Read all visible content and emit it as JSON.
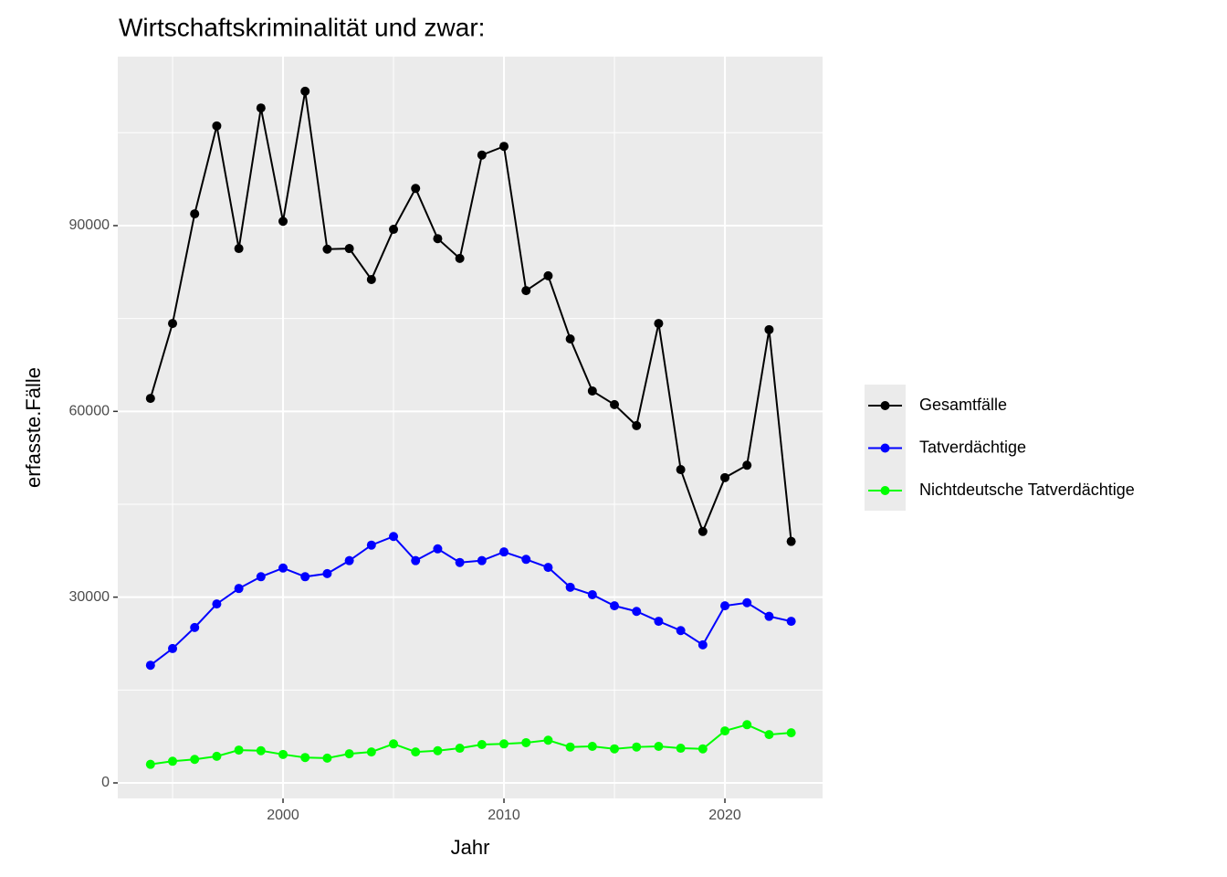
{
  "chart_data": {
    "type": "line",
    "title": "Wirtschaftskriminalität und zwar:",
    "x_label": "Jahr",
    "y_label": "erfasste.Fälle",
    "x": [
      1994,
      1995,
      1996,
      1997,
      1998,
      1999,
      2000,
      2001,
      2002,
      2003,
      2004,
      2005,
      2006,
      2007,
      2008,
      2009,
      2010,
      2011,
      2012,
      2013,
      2014,
      2015,
      2016,
      2017,
      2018,
      2019,
      2020,
      2021,
      2022,
      2023
    ],
    "series": [
      {
        "name": "Gesamtfälle",
        "color": "#000000",
        "values": [
          62100,
          74200,
          91900,
          106100,
          86300,
          109000,
          90700,
          111700,
          86200,
          86300,
          81300,
          89400,
          96000,
          87900,
          84700,
          101400,
          102800,
          79500,
          81900,
          71700,
          63300,
          61100,
          57700,
          74200,
          50600,
          40600,
          49300,
          51300,
          73200,
          39000
        ]
      },
      {
        "name": "Tatverdächtige",
        "color": "#0000ff",
        "values": [
          19000,
          21700,
          25100,
          28900,
          31400,
          33300,
          34700,
          33300,
          33800,
          35900,
          38400,
          39800,
          35900,
          37800,
          35600,
          35900,
          37300,
          36100,
          34800,
          31600,
          30400,
          28600,
          27700,
          26100,
          24600,
          22300,
          28600,
          29100,
          26900,
          26100
        ]
      },
      {
        "name": "Nichtdeutsche Tatverdächtige",
        "color": "#00ff00",
        "values": [
          3000,
          3500,
          3800,
          4300,
          5300,
          5200,
          4600,
          4100,
          4000,
          4700,
          5000,
          6300,
          5000,
          5200,
          5600,
          6200,
          6300,
          6500,
          6900,
          5800,
          5900,
          5500,
          5800,
          5900,
          5600,
          5500,
          8400,
          9400,
          7800,
          8100
        ]
      }
    ],
    "xlim": [
      1992.52,
      2024.42
    ],
    "xticks": [
      2000,
      2010,
      2020
    ],
    "xminor": [
      1995,
      2005,
      2015
    ],
    "ylim": [
      -2508,
      117290
    ],
    "yticks": [
      0,
      30000,
      60000,
      90000
    ],
    "yminor": [
      15000,
      45000,
      75000,
      105000
    ],
    "grid": true,
    "legend": "right"
  }
}
